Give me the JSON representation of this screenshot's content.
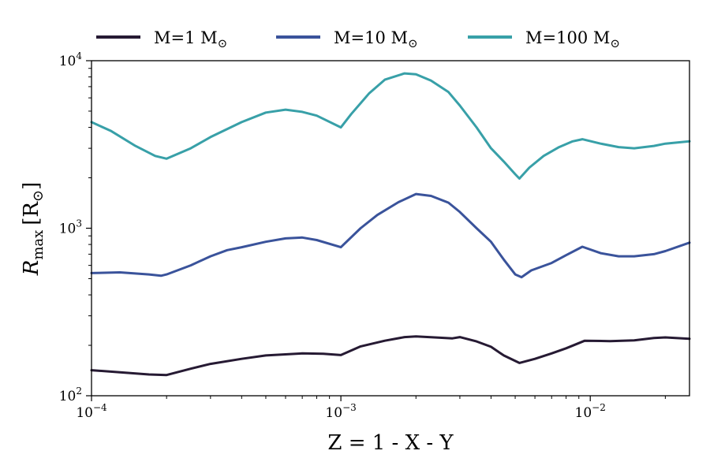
{
  "chart_data": {
    "type": "line",
    "xscale": "log",
    "yscale": "log",
    "xlim": [
      0.0001,
      0.025
    ],
    "ylim": [
      100,
      10000
    ],
    "xlabel": "Z = 1 - X - Y",
    "ylabel": {
      "main": "R",
      "sub": "max",
      "unit": "[R",
      "unit_sub": "⊙",
      "unit_close": "]"
    },
    "x_ticks": [
      {
        "value": 0.0001,
        "base": "10",
        "exp": "−4"
      },
      {
        "value": 0.001,
        "base": "10",
        "exp": "−3"
      },
      {
        "value": 0.01,
        "base": "10",
        "exp": "−2"
      }
    ],
    "y_ticks": [
      {
        "value": 100,
        "base": "10",
        "exp": "2"
      },
      {
        "value": 1000,
        "base": "10",
        "exp": "3"
      },
      {
        "value": 10000,
        "base": "10",
        "exp": "4"
      }
    ],
    "legend_placement": "top",
    "series": [
      {
        "name": "M=1 M",
        "name_sub": "⊙",
        "color": "#261a33",
        "x": [
          0.0001,
          0.00013,
          0.00017,
          0.0002,
          0.00025,
          0.0003,
          0.0004,
          0.0005,
          0.0007,
          0.00085,
          0.001,
          0.0012,
          0.0015,
          0.0018,
          0.002,
          0.0025,
          0.0028,
          0.003,
          0.0035,
          0.004,
          0.0045,
          0.0052,
          0.006,
          0.007,
          0.008,
          0.0095,
          0.012,
          0.015,
          0.018,
          0.02,
          0.025
        ],
        "y": [
          142,
          138,
          134,
          133,
          145,
          155,
          166,
          174,
          179,
          178,
          175,
          197,
          213,
          224,
          226,
          222,
          220,
          224,
          211,
          196,
          174,
          157,
          166,
          179,
          192,
          213,
          212,
          214,
          221,
          223,
          219
        ]
      },
      {
        "name": "M=10 M",
        "name_sub": "⊙",
        "color": "#3a539b",
        "x": [
          0.0001,
          0.00013,
          0.00017,
          0.00019,
          0.0002,
          0.00025,
          0.0003,
          0.00035,
          0.0004,
          0.0005,
          0.0006,
          0.0007,
          0.0008,
          0.001,
          0.0012,
          0.0014,
          0.0017,
          0.002,
          0.0023,
          0.0027,
          0.003,
          0.0035,
          0.004,
          0.0045,
          0.005,
          0.0053,
          0.0058,
          0.007,
          0.008,
          0.0093,
          0.011,
          0.013,
          0.015,
          0.018,
          0.02,
          0.025
        ],
        "y": [
          540,
          545,
          530,
          520,
          530,
          600,
          680,
          740,
          770,
          830,
          870,
          880,
          850,
          770,
          1000,
          1200,
          1430,
          1600,
          1560,
          1420,
          1250,
          1000,
          830,
          650,
          530,
          510,
          560,
          620,
          690,
          775,
          710,
          680,
          680,
          700,
          730,
          820
        ]
      },
      {
        "name": "M=100 M",
        "name_sub": "⊙",
        "color": "#38a0a8",
        "x": [
          0.0001,
          0.00012,
          0.00015,
          0.00018,
          0.0002,
          0.00025,
          0.0003,
          0.0004,
          0.0005,
          0.0006,
          0.0007,
          0.0008,
          0.001,
          0.0011,
          0.0013,
          0.0015,
          0.0018,
          0.002,
          0.0023,
          0.0027,
          0.003,
          0.0035,
          0.004,
          0.0045,
          0.005,
          0.0052,
          0.0057,
          0.0065,
          0.0075,
          0.0085,
          0.0093,
          0.011,
          0.013,
          0.015,
          0.018,
          0.02,
          0.025
        ],
        "y": [
          4300,
          3800,
          3100,
          2700,
          2600,
          3000,
          3500,
          4300,
          4900,
          5100,
          4950,
          4700,
          4000,
          4800,
          6400,
          7700,
          8400,
          8300,
          7600,
          6500,
          5400,
          4000,
          3000,
          2500,
          2100,
          1980,
          2300,
          2700,
          3050,
          3300,
          3400,
          3200,
          3050,
          3000,
          3100,
          3200,
          3300
        ]
      }
    ]
  }
}
